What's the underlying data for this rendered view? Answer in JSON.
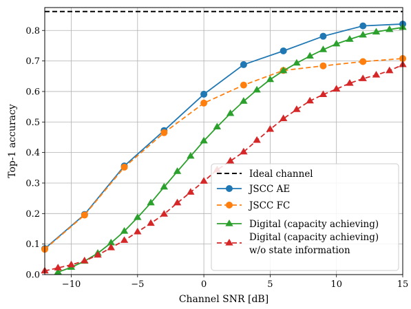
{
  "chart_data": {
    "type": "line",
    "title": "",
    "xlabel": "Channel SNR [dB]",
    "ylabel": "Top-1 accuracy",
    "xlim": [
      -12,
      15
    ],
    "ylim": [
      0,
      0.875
    ],
    "xticks": [
      -10,
      -5,
      0,
      5,
      10,
      15
    ],
    "yticks": [
      0,
      0.1,
      0.2,
      0.3,
      0.4,
      0.5,
      0.6,
      0.7,
      0.8
    ],
    "xtick_labels": [
      "−10",
      "−5",
      "0",
      "5",
      "10",
      "15"
    ],
    "ytick_labels": [
      "0.0",
      "0.1",
      "0.2",
      "0.3",
      "0.4",
      "0.5",
      "0.6",
      "0.7",
      "0.8"
    ],
    "grid": true,
    "legend_position": "bottom-right",
    "reference_line": {
      "name": "Ideal channel",
      "y": 0.862,
      "color": "#000000",
      "style": "dashed"
    },
    "series": [
      {
        "name": "JSCC AE",
        "color": "#1f77b4",
        "style": "solid",
        "marker": "circle",
        "x": [
          -12,
          -9,
          -6,
          -3,
          0,
          3,
          6,
          9,
          12,
          15
        ],
        "y": [
          0.085,
          0.197,
          0.356,
          0.472,
          0.591,
          0.688,
          0.733,
          0.781,
          0.815,
          0.821
        ]
      },
      {
        "name": "JSCC FC",
        "color": "#ff7f0e",
        "style": "dashed",
        "marker": "circle",
        "x": [
          -12,
          -9,
          -6,
          -3,
          0,
          3,
          6,
          9,
          12,
          15
        ],
        "y": [
          0.083,
          0.195,
          0.352,
          0.465,
          0.562,
          0.621,
          0.669,
          0.684,
          0.698,
          0.708
        ]
      },
      {
        "name": "Digital (capacity achieving)",
        "color": "#2ca02c",
        "style": "solid",
        "marker": "triangle",
        "x": [
          -11,
          -10,
          -9,
          -8,
          -7,
          -6,
          -5,
          -4,
          -3,
          -2,
          -1,
          0,
          1,
          2,
          3,
          4,
          5,
          6,
          7,
          8,
          9,
          10,
          11,
          12,
          13,
          14,
          15
        ],
        "y": [
          0.008,
          0.024,
          0.044,
          0.07,
          0.104,
          0.142,
          0.187,
          0.235,
          0.287,
          0.338,
          0.388,
          0.438,
          0.484,
          0.528,
          0.568,
          0.605,
          0.639,
          0.668,
          0.693,
          0.716,
          0.737,
          0.756,
          0.771,
          0.785,
          0.795,
          0.803,
          0.81
        ]
      },
      {
        "name": "Digital (capacity achieving)\nw/o state information",
        "name_lines": [
          "Digital (capacity achieving)",
          "w/o state information"
        ],
        "color": "#d62728",
        "style": "dashed",
        "marker": "triangle",
        "x": [
          -12,
          -11,
          -10,
          -9,
          -8,
          -7,
          -6,
          -5,
          -4,
          -3,
          -2,
          -1,
          0,
          1,
          2,
          3,
          4,
          5,
          6,
          7,
          8,
          9,
          10,
          11,
          12,
          13,
          14,
          15
        ],
        "y": [
          0.012,
          0.022,
          0.032,
          0.045,
          0.064,
          0.088,
          0.112,
          0.14,
          0.168,
          0.198,
          0.235,
          0.27,
          0.306,
          0.343,
          0.372,
          0.402,
          0.44,
          0.476,
          0.511,
          0.541,
          0.569,
          0.59,
          0.608,
          0.627,
          0.642,
          0.654,
          0.668,
          0.688
        ]
      }
    ]
  }
}
